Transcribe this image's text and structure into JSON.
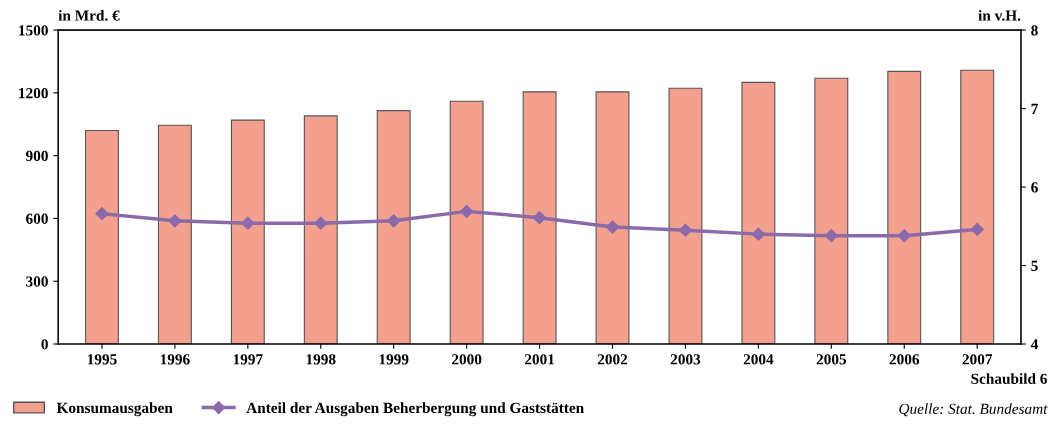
{
  "chart_data": {
    "type": "bar",
    "ylabel": "in Mrd. €",
    "y2label": "in v.H.",
    "categories": [
      "1995",
      "1996",
      "1997",
      "1998",
      "1999",
      "2000",
      "2001",
      "2002",
      "2003",
      "2004",
      "2005",
      "2006",
      "2007"
    ],
    "series": [
      {
        "name": "Konsumausgaben",
        "color": "#f3a08e",
        "values": [
          1020,
          1045,
          1070,
          1090,
          1115,
          1160,
          1205,
          1205,
          1222,
          1250,
          1270,
          1303,
          1308
        ]
      },
      {
        "name": "Anteil der Ausgaben Beherbergung und Gaststätten",
        "type": "line",
        "axis": "y2",
        "color": "#8a6aa8",
        "marker": "diamond",
        "values": [
          5.66,
          5.57,
          5.54,
          5.54,
          5.57,
          5.69,
          5.61,
          5.49,
          5.45,
          5.4,
          5.38,
          5.38,
          5.46
        ]
      }
    ],
    "ylim": [
      0,
      1500
    ],
    "yticks": [
      0,
      300,
      600,
      900,
      1200,
      1500
    ],
    "y2lim": [
      4,
      8
    ],
    "y2ticks": [
      4,
      5,
      6,
      7,
      8
    ],
    "grid": false,
    "legend": "bottom",
    "annotations": [
      "Schaubild 6",
      "Quelle: Stat. Bundesamt"
    ]
  }
}
